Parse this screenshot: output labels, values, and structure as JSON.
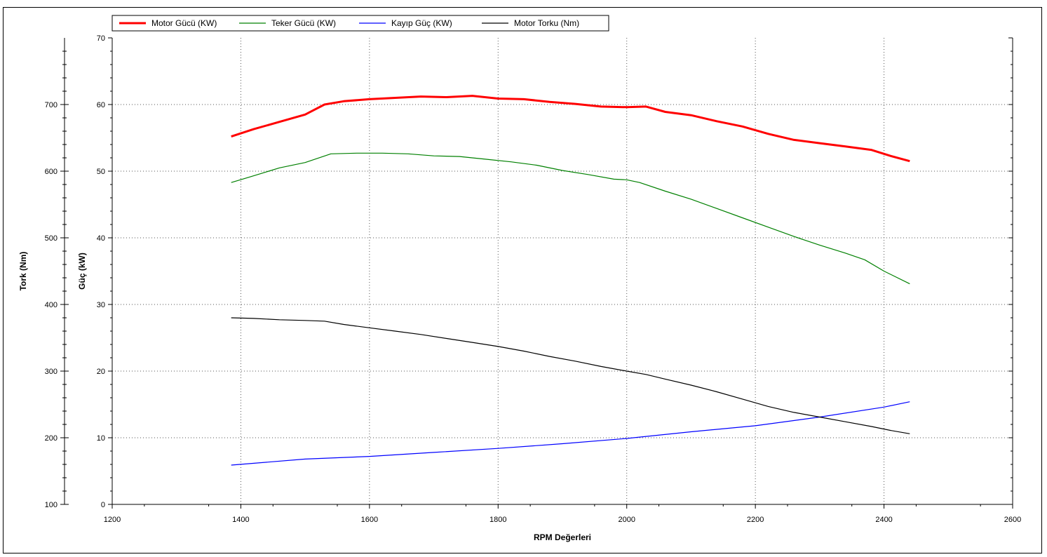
{
  "chart_data": {
    "type": "line",
    "xlabel": "RPM Değerleri",
    "ylabel_left_outer": "Tork (Nm)",
    "ylabel_left_inner": "Güç (kW)",
    "xlim": [
      1200,
      2600
    ],
    "ylim_power": [
      0,
      70
    ],
    "ylim_torque": [
      100,
      800
    ],
    "x_ticks": [
      "1200",
      "1400",
      "1600",
      "1800",
      "2000",
      "2200",
      "2400",
      "2600"
    ],
    "power_ticks": [
      "0",
      "10",
      "20",
      "30",
      "40",
      "50",
      "60",
      "70"
    ],
    "torque_ticks": [
      "100",
      "200",
      "300",
      "400",
      "500",
      "600",
      "700"
    ],
    "grid": true,
    "legend_position": "top-left",
    "series": [
      {
        "name": "Motor Gücü (KW)",
        "axis": "power",
        "color": "#ff0000",
        "points": [
          [
            1385,
            55.2
          ],
          [
            1420,
            56.3
          ],
          [
            1460,
            57.4
          ],
          [
            1500,
            58.5
          ],
          [
            1530,
            60.0
          ],
          [
            1560,
            60.5
          ],
          [
            1600,
            60.8
          ],
          [
            1640,
            61.0
          ],
          [
            1680,
            61.2
          ],
          [
            1720,
            61.1
          ],
          [
            1760,
            61.3
          ],
          [
            1800,
            60.9
          ],
          [
            1840,
            60.8
          ],
          [
            1880,
            60.4
          ],
          [
            1920,
            60.1
          ],
          [
            1960,
            59.7
          ],
          [
            2000,
            59.6
          ],
          [
            2030,
            59.7
          ],
          [
            2060,
            58.9
          ],
          [
            2100,
            58.4
          ],
          [
            2140,
            57.5
          ],
          [
            2180,
            56.7
          ],
          [
            2220,
            55.6
          ],
          [
            2260,
            54.7
          ],
          [
            2300,
            54.2
          ],
          [
            2340,
            53.7
          ],
          [
            2380,
            53.2
          ],
          [
            2410,
            52.3
          ],
          [
            2440,
            51.5
          ]
        ]
      },
      {
        "name": "Teker Gücü (KW)",
        "axis": "power",
        "color": "#008000",
        "points": [
          [
            1385,
            48.3
          ],
          [
            1420,
            49.3
          ],
          [
            1460,
            50.5
          ],
          [
            1500,
            51.3
          ],
          [
            1540,
            52.6
          ],
          [
            1580,
            52.7
          ],
          [
            1620,
            52.7
          ],
          [
            1660,
            52.6
          ],
          [
            1700,
            52.3
          ],
          [
            1740,
            52.2
          ],
          [
            1780,
            51.8
          ],
          [
            1820,
            51.4
          ],
          [
            1860,
            50.9
          ],
          [
            1900,
            50.1
          ],
          [
            1940,
            49.5
          ],
          [
            1980,
            48.8
          ],
          [
            2000,
            48.7
          ],
          [
            2020,
            48.3
          ],
          [
            2060,
            47.0
          ],
          [
            2100,
            45.8
          ],
          [
            2140,
            44.4
          ],
          [
            2180,
            43.0
          ],
          [
            2220,
            41.6
          ],
          [
            2260,
            40.2
          ],
          [
            2300,
            38.9
          ],
          [
            2340,
            37.7
          ],
          [
            2370,
            36.7
          ],
          [
            2400,
            35.0
          ],
          [
            2440,
            33.1
          ]
        ]
      },
      {
        "name": "Kayıp Güç (KW)",
        "axis": "power",
        "color": "#0000ff",
        "points": [
          [
            1385,
            5.9
          ],
          [
            1500,
            6.8
          ],
          [
            1600,
            7.2
          ],
          [
            1700,
            7.8
          ],
          [
            1800,
            8.4
          ],
          [
            1900,
            9.1
          ],
          [
            2000,
            9.9
          ],
          [
            2100,
            10.9
          ],
          [
            2200,
            11.8
          ],
          [
            2300,
            13.1
          ],
          [
            2400,
            14.6
          ],
          [
            2440,
            15.4
          ]
        ]
      },
      {
        "name": "Motor Torku (Nm)",
        "axis": "torque",
        "color": "#000000",
        "points": [
          [
            1385,
            380
          ],
          [
            1420,
            379
          ],
          [
            1460,
            377
          ],
          [
            1500,
            376
          ],
          [
            1530,
            375
          ],
          [
            1560,
            370
          ],
          [
            1600,
            365
          ],
          [
            1640,
            360
          ],
          [
            1680,
            355
          ],
          [
            1720,
            349
          ],
          [
            1760,
            343
          ],
          [
            1800,
            337
          ],
          [
            1840,
            330
          ],
          [
            1880,
            322
          ],
          [
            1920,
            315
          ],
          [
            1960,
            307
          ],
          [
            2000,
            300
          ],
          [
            2030,
            295
          ],
          [
            2060,
            288
          ],
          [
            2100,
            279
          ],
          [
            2140,
            269
          ],
          [
            2180,
            258
          ],
          [
            2220,
            247
          ],
          [
            2260,
            238
          ],
          [
            2300,
            231
          ],
          [
            2340,
            224
          ],
          [
            2380,
            217
          ],
          [
            2410,
            211
          ],
          [
            2440,
            206
          ]
        ]
      }
    ]
  }
}
